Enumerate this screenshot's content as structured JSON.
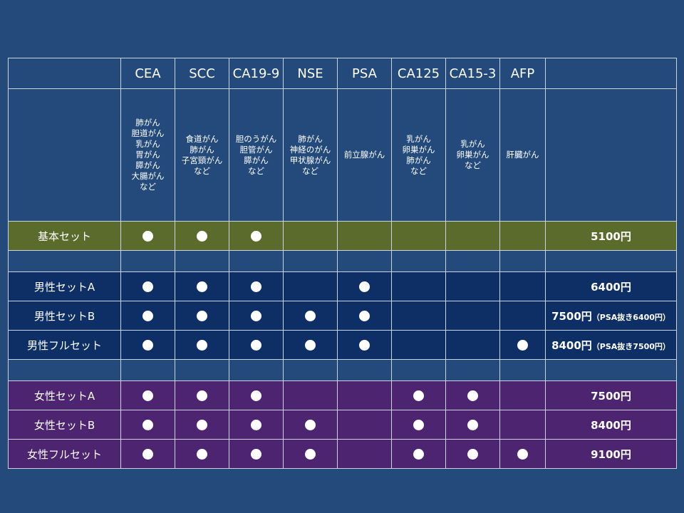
{
  "header": {
    "markers": [
      "CEA",
      "SCC",
      "CA19-9",
      "NSE",
      "PSA",
      "CA125",
      "CA15-3",
      "AFP"
    ]
  },
  "descriptions": [
    "肺がん\n胆道がん\n乳がん\n胃がん\n膵がん\n大腸がん\nなど",
    "食道がん\n肺がん\n子宮頸がん\nなど",
    "胆のうがん\n胆管がん\n膵がん\nなど",
    "肺がん\n神経のがん\n甲状腺がん\nなど",
    "前立腺がん",
    "乳がん\n卵巣がん\n肺がん\nなど",
    "乳がん\n卵巣がん\nなど",
    "肝臓がん"
  ],
  "sets": [
    {
      "name": "基本セット",
      "price": "5100円",
      "note": "",
      "group": "basic",
      "markers": [
        1,
        1,
        1,
        0,
        0,
        0,
        0,
        0
      ]
    },
    {
      "name": "男性セットA",
      "price": "6400円",
      "note": "",
      "group": "male",
      "markers": [
        1,
        1,
        1,
        0,
        1,
        0,
        0,
        0
      ]
    },
    {
      "name": "男性セットB",
      "price": "7500円",
      "note": "（PSA抜き6400円）",
      "group": "male",
      "markers": [
        1,
        1,
        1,
        1,
        1,
        0,
        0,
        0
      ]
    },
    {
      "name": "男性フルセット",
      "price": "8400円",
      "note": "（PSA抜き7500円）",
      "group": "male",
      "markers": [
        1,
        1,
        1,
        1,
        1,
        0,
        0,
        1
      ]
    },
    {
      "name": "女性セットA",
      "price": "7500円",
      "note": "",
      "group": "female",
      "markers": [
        1,
        1,
        1,
        0,
        0,
        1,
        1,
        0
      ]
    },
    {
      "name": "女性セットB",
      "price": "8400円",
      "note": "",
      "group": "female",
      "markers": [
        1,
        1,
        1,
        1,
        0,
        1,
        1,
        0
      ]
    },
    {
      "name": "女性フルセット",
      "price": "9100円",
      "note": "",
      "group": "female",
      "markers": [
        1,
        1,
        1,
        1,
        0,
        1,
        1,
        1
      ]
    }
  ],
  "colors": {
    "background": "#234a7a",
    "basic_row": "#5a6b2c",
    "male_row": "#0e2f66",
    "female_row": "#4d2470",
    "border": "#c9d3e2",
    "dot": "#ffffff"
  },
  "icons": {
    "included": "filled-circle-icon"
  }
}
